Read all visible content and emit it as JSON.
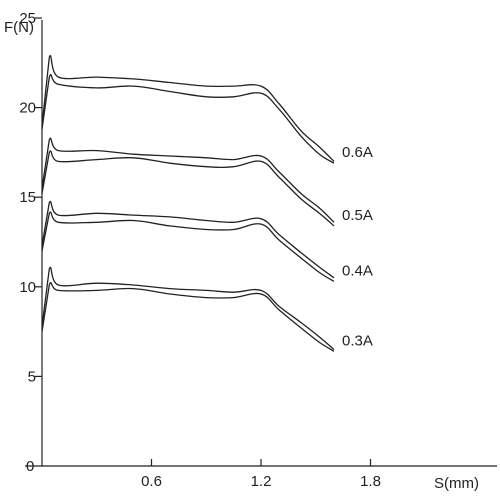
{
  "chart_data": {
    "type": "line",
    "title": "",
    "xlabel": "S(mm)",
    "ylabel": "F(N)",
    "xlim": [
      0,
      2.4
    ],
    "ylim": [
      0,
      26
    ],
    "x_ticks": [
      0.6,
      1.2,
      1.8
    ],
    "y_ticks": [
      5,
      10,
      15,
      20,
      25
    ],
    "x_tick_labels": [
      "0.6",
      "1.2",
      "1.8"
    ],
    "y_tick_labels": [
      "5",
      "10",
      "15",
      "20",
      "25"
    ],
    "origin_label": "0",
    "grid": false,
    "legend": "none",
    "line_color": "#222222",
    "series": [
      {
        "name": "0.6A",
        "upper": {
          "x": [
            0,
            0.04,
            0.09,
            0.3,
            0.5,
            0.7,
            0.9,
            1.05,
            1.2,
            1.3,
            1.42,
            1.52,
            1.6
          ],
          "y": [
            19.0,
            22.8,
            21.7,
            21.7,
            21.6,
            21.4,
            21.2,
            21.2,
            21.2,
            20.2,
            18.7,
            17.8,
            17.0
          ]
        },
        "lower": {
          "x": [
            0,
            0.04,
            0.09,
            0.3,
            0.5,
            0.7,
            0.9,
            1.05,
            1.2,
            1.3,
            1.42,
            1.52,
            1.6
          ],
          "y": [
            18.8,
            21.7,
            21.3,
            21.1,
            21.2,
            20.9,
            20.6,
            20.6,
            20.8,
            19.9,
            18.4,
            17.4,
            16.9
          ]
        }
      },
      {
        "name": "0.5A",
        "upper": {
          "x": [
            0,
            0.04,
            0.09,
            0.3,
            0.5,
            0.7,
            0.9,
            1.05,
            1.2,
            1.3,
            1.42,
            1.52,
            1.6
          ],
          "y": [
            15.5,
            18.2,
            17.6,
            17.6,
            17.4,
            17.3,
            17.2,
            17.1,
            17.3,
            16.4,
            15.2,
            14.4,
            13.6
          ]
        },
        "lower": {
          "x": [
            0,
            0.04,
            0.09,
            0.3,
            0.5,
            0.7,
            0.9,
            1.05,
            1.2,
            1.3,
            1.42,
            1.52,
            1.6
          ],
          "y": [
            15.2,
            17.5,
            17.0,
            17.1,
            17.2,
            16.9,
            16.7,
            16.7,
            17.0,
            16.1,
            14.9,
            14.1,
            13.4
          ]
        }
      },
      {
        "name": "0.4A",
        "upper": {
          "x": [
            0,
            0.04,
            0.09,
            0.3,
            0.5,
            0.7,
            0.9,
            1.05,
            1.2,
            1.3,
            1.42,
            1.52,
            1.6
          ],
          "y": [
            12.3,
            14.7,
            14.0,
            14.1,
            14.0,
            13.9,
            13.7,
            13.6,
            13.8,
            12.9,
            11.9,
            11.1,
            10.5
          ]
        },
        "lower": {
          "x": [
            0,
            0.04,
            0.09,
            0.3,
            0.5,
            0.7,
            0.9,
            1.05,
            1.2,
            1.3,
            1.42,
            1.52,
            1.6
          ],
          "y": [
            12.0,
            14.1,
            13.6,
            13.6,
            13.7,
            13.4,
            13.2,
            13.2,
            13.5,
            12.6,
            11.6,
            10.8,
            10.3
          ]
        }
      },
      {
        "name": "0.3A",
        "upper": {
          "x": [
            0,
            0.04,
            0.09,
            0.3,
            0.5,
            0.7,
            0.9,
            1.05,
            1.2,
            1.3,
            1.42,
            1.52,
            1.6
          ],
          "y": [
            7.8,
            11.0,
            10.1,
            10.2,
            10.1,
            9.9,
            9.8,
            9.7,
            9.8,
            8.9,
            8.0,
            7.2,
            6.5
          ]
        },
        "lower": {
          "x": [
            0,
            0.04,
            0.09,
            0.3,
            0.5,
            0.7,
            0.9,
            1.05,
            1.2,
            1.3,
            1.42,
            1.52,
            1.6
          ],
          "y": [
            7.5,
            10.1,
            9.8,
            9.8,
            9.9,
            9.6,
            9.4,
            9.4,
            9.6,
            8.7,
            7.7,
            6.9,
            6.4
          ]
        }
      }
    ]
  }
}
